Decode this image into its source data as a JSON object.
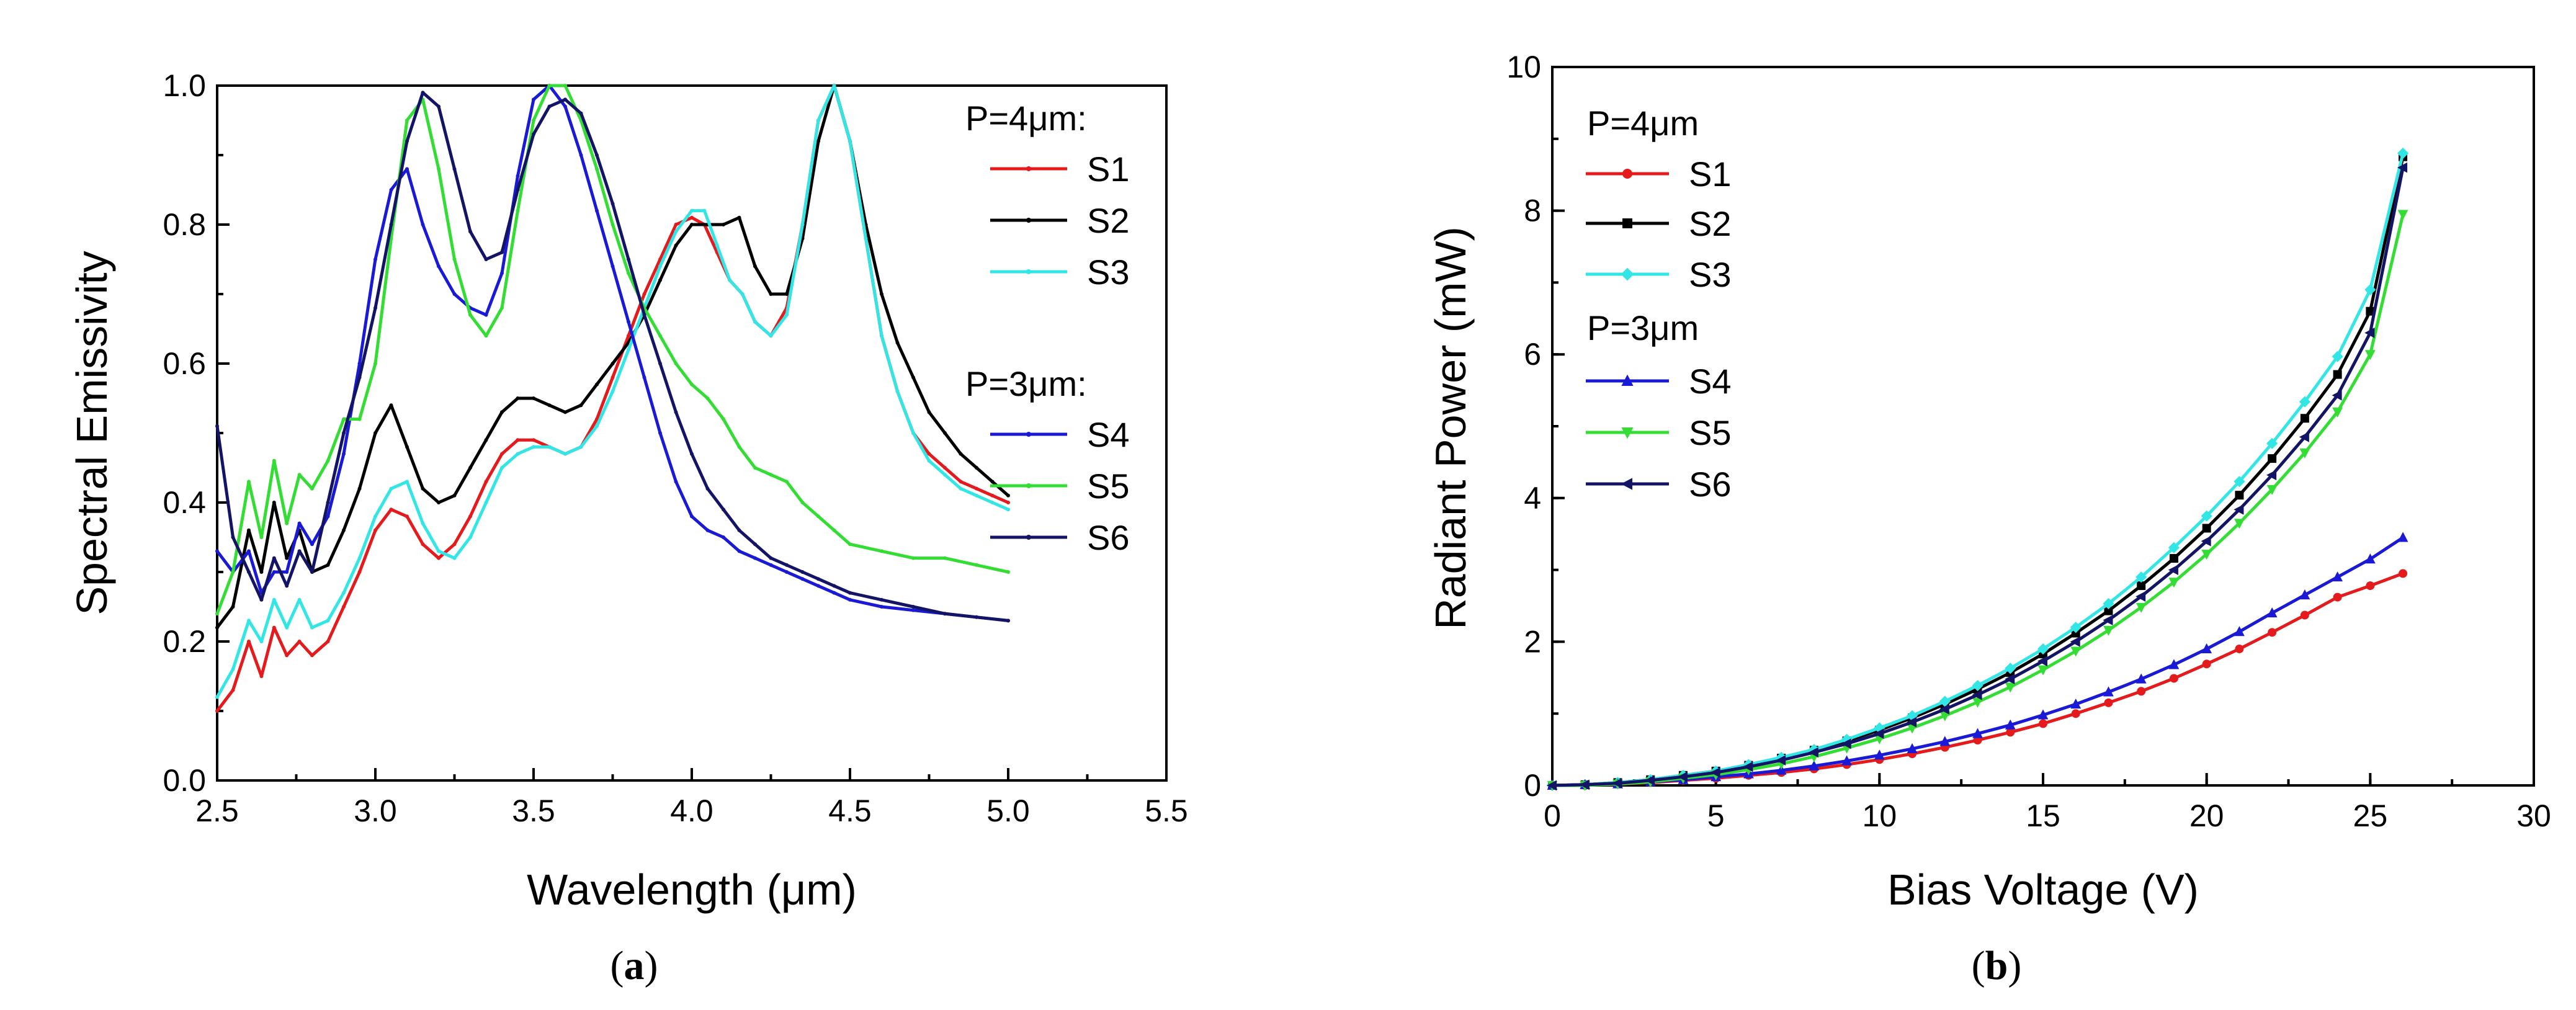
{
  "chart_data": [
    {
      "id": "a",
      "type": "line",
      "panel_label": "a",
      "xlabel": "Wavelength (μm)",
      "ylabel": "Spectral Emissivity",
      "xlim": [
        2.5,
        5.5
      ],
      "ylim": [
        0.0,
        1.0
      ],
      "xticks": [
        2.5,
        3.0,
        3.5,
        4.0,
        4.5,
        5.0,
        5.5
      ],
      "xtick_labels": [
        "2.5",
        "3.0",
        "3.5",
        "4.0",
        "4.5",
        "5.0",
        "5.5"
      ],
      "yticks": [
        0.0,
        0.2,
        0.4,
        0.6,
        0.8,
        1.0
      ],
      "ytick_labels": [
        "0.0",
        "0.2",
        "0.4",
        "0.6",
        "0.8",
        "1.0"
      ],
      "grid": false,
      "legend_position": "top-right",
      "legend_groups": [
        {
          "header": "P=4μm:",
          "series": [
            "S1",
            "S2",
            "S3"
          ]
        },
        {
          "header": "P=3μm:",
          "series": [
            "S4",
            "S5",
            "S6"
          ]
        }
      ],
      "series": [
        {
          "name": "S1",
          "color": "#e41a1c",
          "x": [
            2.5,
            2.55,
            2.6,
            2.64,
            2.68,
            2.72,
            2.76,
            2.8,
            2.85,
            2.9,
            2.95,
            3.0,
            3.05,
            3.1,
            3.15,
            3.2,
            3.25,
            3.3,
            3.35,
            3.4,
            3.45,
            3.5,
            3.55,
            3.6,
            3.65,
            3.7,
            3.75,
            3.8,
            3.85,
            3.9,
            3.95,
            4.0,
            4.04,
            4.08,
            4.12,
            4.16,
            4.2,
            4.25,
            4.3,
            4.35,
            4.4,
            4.45,
            4.5,
            4.55,
            4.6,
            4.65,
            4.7,
            4.75,
            4.8,
            4.85,
            4.9,
            4.95,
            5.0
          ],
          "y": [
            0.1,
            0.13,
            0.2,
            0.15,
            0.22,
            0.18,
            0.2,
            0.18,
            0.2,
            0.25,
            0.3,
            0.36,
            0.39,
            0.38,
            0.34,
            0.32,
            0.34,
            0.38,
            0.43,
            0.47,
            0.49,
            0.49,
            0.48,
            0.47,
            0.48,
            0.52,
            0.58,
            0.64,
            0.7,
            0.75,
            0.8,
            0.81,
            0.8,
            0.76,
            0.72,
            0.7,
            0.66,
            0.64,
            0.68,
            0.8,
            0.95,
            1.0,
            0.92,
            0.78,
            0.64,
            0.56,
            0.5,
            0.47,
            0.45,
            0.43,
            0.42,
            0.41,
            0.4
          ]
        },
        {
          "name": "S2",
          "color": "#000000",
          "x": [
            2.5,
            2.55,
            2.6,
            2.64,
            2.68,
            2.72,
            2.76,
            2.8,
            2.85,
            2.9,
            2.95,
            3.0,
            3.05,
            3.1,
            3.15,
            3.2,
            3.25,
            3.3,
            3.35,
            3.4,
            3.45,
            3.5,
            3.55,
            3.6,
            3.65,
            3.7,
            3.75,
            3.8,
            3.85,
            3.9,
            3.95,
            4.0,
            4.05,
            4.1,
            4.15,
            4.2,
            4.25,
            4.3,
            4.35,
            4.4,
            4.45,
            4.5,
            4.55,
            4.6,
            4.65,
            4.7,
            4.75,
            4.8,
            4.85,
            4.9,
            4.95,
            5.0
          ],
          "y": [
            0.22,
            0.25,
            0.36,
            0.3,
            0.4,
            0.32,
            0.36,
            0.3,
            0.31,
            0.36,
            0.42,
            0.5,
            0.54,
            0.48,
            0.42,
            0.4,
            0.41,
            0.45,
            0.49,
            0.53,
            0.55,
            0.55,
            0.54,
            0.53,
            0.54,
            0.57,
            0.6,
            0.63,
            0.67,
            0.72,
            0.77,
            0.8,
            0.8,
            0.8,
            0.81,
            0.74,
            0.7,
            0.7,
            0.78,
            0.92,
            1.0,
            0.92,
            0.8,
            0.7,
            0.63,
            0.58,
            0.53,
            0.5,
            0.47,
            0.45,
            0.43,
            0.41
          ]
        },
        {
          "name": "S3",
          "color": "#33e6e6",
          "x": [
            2.5,
            2.55,
            2.6,
            2.64,
            2.68,
            2.72,
            2.76,
            2.8,
            2.85,
            2.9,
            2.95,
            3.0,
            3.05,
            3.1,
            3.15,
            3.2,
            3.25,
            3.3,
            3.35,
            3.4,
            3.45,
            3.5,
            3.55,
            3.6,
            3.65,
            3.7,
            3.75,
            3.8,
            3.85,
            3.9,
            3.95,
            4.0,
            4.04,
            4.08,
            4.12,
            4.16,
            4.2,
            4.25,
            4.3,
            4.35,
            4.4,
            4.45,
            4.5,
            4.55,
            4.6,
            4.65,
            4.7,
            4.75,
            4.8,
            4.85,
            4.9,
            4.95,
            5.0
          ],
          "y": [
            0.12,
            0.16,
            0.23,
            0.2,
            0.26,
            0.22,
            0.26,
            0.22,
            0.23,
            0.27,
            0.32,
            0.38,
            0.42,
            0.43,
            0.37,
            0.33,
            0.32,
            0.35,
            0.4,
            0.45,
            0.47,
            0.48,
            0.48,
            0.47,
            0.48,
            0.51,
            0.56,
            0.62,
            0.68,
            0.74,
            0.79,
            0.82,
            0.82,
            0.77,
            0.72,
            0.7,
            0.66,
            0.64,
            0.67,
            0.8,
            0.95,
            1.0,
            0.92,
            0.78,
            0.64,
            0.56,
            0.5,
            0.46,
            0.44,
            0.42,
            0.41,
            0.4,
            0.39
          ]
        },
        {
          "name": "S4",
          "color": "#1a1ad6",
          "x": [
            2.5,
            2.55,
            2.6,
            2.64,
            2.68,
            2.72,
            2.76,
            2.8,
            2.85,
            2.9,
            2.95,
            3.0,
            3.05,
            3.1,
            3.15,
            3.2,
            3.25,
            3.3,
            3.35,
            3.4,
            3.45,
            3.5,
            3.55,
            3.6,
            3.65,
            3.7,
            3.75,
            3.8,
            3.85,
            3.9,
            3.95,
            4.0,
            4.05,
            4.1,
            4.15,
            4.2,
            4.25,
            4.3,
            4.35,
            4.4,
            4.45,
            4.5,
            4.6,
            4.7,
            4.8,
            4.9,
            5.0
          ],
          "y": [
            0.33,
            0.3,
            0.33,
            0.27,
            0.3,
            0.3,
            0.37,
            0.34,
            0.38,
            0.47,
            0.6,
            0.75,
            0.85,
            0.88,
            0.8,
            0.74,
            0.7,
            0.68,
            0.67,
            0.73,
            0.87,
            0.98,
            1.0,
            0.97,
            0.9,
            0.82,
            0.74,
            0.66,
            0.58,
            0.5,
            0.43,
            0.38,
            0.36,
            0.35,
            0.33,
            0.32,
            0.31,
            0.3,
            0.29,
            0.28,
            0.27,
            0.26,
            0.25,
            0.245,
            0.24,
            0.235,
            0.23
          ]
        },
        {
          "name": "S5",
          "color": "#33dd33",
          "x": [
            2.5,
            2.55,
            2.6,
            2.64,
            2.68,
            2.72,
            2.76,
            2.8,
            2.85,
            2.9,
            2.95,
            3.0,
            3.05,
            3.1,
            3.15,
            3.2,
            3.25,
            3.3,
            3.35,
            3.4,
            3.45,
            3.5,
            3.55,
            3.6,
            3.65,
            3.7,
            3.75,
            3.8,
            3.85,
            3.9,
            3.95,
            4.0,
            4.05,
            4.1,
            4.15,
            4.2,
            4.25,
            4.3,
            4.35,
            4.4,
            4.45,
            4.5,
            4.6,
            4.7,
            4.8,
            4.9,
            5.0
          ],
          "y": [
            0.24,
            0.3,
            0.43,
            0.35,
            0.46,
            0.37,
            0.44,
            0.42,
            0.46,
            0.52,
            0.52,
            0.6,
            0.78,
            0.95,
            0.98,
            0.88,
            0.75,
            0.67,
            0.64,
            0.68,
            0.82,
            0.95,
            1.0,
            1.0,
            0.95,
            0.88,
            0.8,
            0.73,
            0.68,
            0.64,
            0.6,
            0.57,
            0.55,
            0.52,
            0.48,
            0.45,
            0.44,
            0.43,
            0.4,
            0.38,
            0.36,
            0.34,
            0.33,
            0.32,
            0.32,
            0.31,
            0.3
          ]
        },
        {
          "name": "S6",
          "color": "#141466",
          "x": [
            2.5,
            2.55,
            2.6,
            2.64,
            2.68,
            2.72,
            2.76,
            2.8,
            2.85,
            2.9,
            2.95,
            3.0,
            3.05,
            3.1,
            3.15,
            3.2,
            3.25,
            3.3,
            3.35,
            3.4,
            3.45,
            3.5,
            3.55,
            3.6,
            3.65,
            3.7,
            3.75,
            3.8,
            3.85,
            3.9,
            3.95,
            4.0,
            4.05,
            4.1,
            4.15,
            4.2,
            4.25,
            4.3,
            4.35,
            4.4,
            4.45,
            4.5,
            4.6,
            4.7,
            4.8,
            4.9,
            5.0
          ],
          "y": [
            0.51,
            0.35,
            0.3,
            0.26,
            0.32,
            0.28,
            0.33,
            0.3,
            0.4,
            0.5,
            0.58,
            0.68,
            0.8,
            0.92,
            0.99,
            0.97,
            0.88,
            0.79,
            0.75,
            0.76,
            0.85,
            0.93,
            0.97,
            0.98,
            0.96,
            0.9,
            0.83,
            0.75,
            0.67,
            0.6,
            0.53,
            0.47,
            0.42,
            0.39,
            0.36,
            0.34,
            0.32,
            0.31,
            0.3,
            0.29,
            0.28,
            0.27,
            0.26,
            0.25,
            0.24,
            0.235,
            0.23
          ]
        }
      ]
    },
    {
      "id": "b",
      "type": "line",
      "panel_label": "b",
      "xlabel": "Bias Voltage (V)",
      "ylabel": "Radiant Power (mW)",
      "xlim": [
        0,
        30
      ],
      "ylim": [
        0,
        10
      ],
      "xticks": [
        0,
        5,
        10,
        15,
        20,
        25,
        30
      ],
      "xtick_labels": [
        "0",
        "5",
        "10",
        "15",
        "20",
        "25",
        "30"
      ],
      "yticks": [
        0,
        2,
        4,
        6,
        8,
        10
      ],
      "ytick_labels": [
        "0",
        "2",
        "4",
        "6",
        "8",
        "10"
      ],
      "grid": false,
      "legend_position": "top-left",
      "legend_groups": [
        {
          "header": "P=4μm",
          "series": [
            "S1",
            "S2",
            "S3"
          ]
        },
        {
          "header": "P=3μm",
          "series": [
            "S4",
            "S5",
            "S6"
          ]
        }
      ],
      "series": [
        {
          "name": "S1",
          "color": "#e41a1c",
          "marker": "circle",
          "x": [
            0,
            1,
            2,
            3,
            4,
            5,
            6,
            7,
            8,
            9,
            10,
            11,
            12,
            13,
            14,
            15,
            16,
            17,
            18,
            19,
            20,
            21,
            22,
            23,
            24,
            25,
            26
          ],
          "y": [
            0,
            0.0,
            0.02,
            0.04,
            0.07,
            0.1,
            0.14,
            0.18,
            0.23,
            0.29,
            0.36,
            0.44,
            0.53,
            0.63,
            0.74,
            0.86,
            1.0,
            1.15,
            1.31,
            1.49,
            1.69,
            1.9,
            2.13,
            2.37,
            2.62,
            2.78,
            2.95
          ]
        },
        {
          "name": "S2",
          "color": "#000000",
          "marker": "square",
          "x": [
            0,
            1,
            2,
            3,
            4,
            5,
            6,
            7,
            8,
            9,
            10,
            11,
            12,
            13,
            14,
            15,
            16,
            17,
            18,
            19,
            20,
            21,
            22,
            23,
            24,
            25,
            26
          ],
          "y": [
            0,
            0.01,
            0.04,
            0.08,
            0.14,
            0.2,
            0.28,
            0.38,
            0.49,
            0.62,
            0.77,
            0.94,
            1.13,
            1.34,
            1.57,
            1.83,
            2.12,
            2.43,
            2.78,
            3.16,
            3.58,
            4.04,
            4.55,
            5.11,
            5.72,
            6.6,
            8.75
          ]
        },
        {
          "name": "S3",
          "color": "#33e6e6",
          "marker": "diamond",
          "x": [
            0,
            1,
            2,
            3,
            4,
            5,
            6,
            7,
            8,
            9,
            10,
            11,
            12,
            13,
            14,
            15,
            16,
            17,
            18,
            19,
            20,
            21,
            22,
            23,
            24,
            25,
            26
          ],
          "y": [
            0,
            0.01,
            0.04,
            0.08,
            0.14,
            0.2,
            0.29,
            0.39,
            0.5,
            0.64,
            0.8,
            0.97,
            1.17,
            1.39,
            1.63,
            1.9,
            2.2,
            2.53,
            2.9,
            3.31,
            3.75,
            4.23,
            4.76,
            5.34,
            5.97,
            6.9,
            8.8
          ]
        },
        {
          "name": "S4",
          "color": "#1a1ad6",
          "marker": "triangle-up",
          "x": [
            0,
            1,
            2,
            3,
            4,
            5,
            6,
            7,
            8,
            9,
            10,
            11,
            12,
            13,
            14,
            15,
            16,
            17,
            18,
            19,
            20,
            21,
            22,
            23,
            24,
            25,
            26
          ],
          "y": [
            0,
            0.01,
            0.02,
            0.05,
            0.08,
            0.12,
            0.16,
            0.21,
            0.27,
            0.34,
            0.42,
            0.51,
            0.61,
            0.72,
            0.84,
            0.98,
            1.13,
            1.3,
            1.48,
            1.68,
            1.9,
            2.14,
            2.4,
            2.65,
            2.9,
            3.15,
            3.45
          ]
        },
        {
          "name": "S5",
          "color": "#33dd33",
          "marker": "triangle-down",
          "x": [
            0,
            1,
            2,
            3,
            4,
            5,
            6,
            7,
            8,
            9,
            10,
            11,
            12,
            13,
            14,
            15,
            16,
            17,
            18,
            19,
            20,
            21,
            22,
            23,
            24,
            25,
            26
          ],
          "y": [
            0,
            0.0,
            0.02,
            0.05,
            0.1,
            0.15,
            0.22,
            0.3,
            0.4,
            0.52,
            0.65,
            0.8,
            0.97,
            1.16,
            1.37,
            1.61,
            1.87,
            2.16,
            2.48,
            2.83,
            3.22,
            3.65,
            4.12,
            4.63,
            5.2,
            6.0,
            7.95
          ]
        },
        {
          "name": "S6",
          "color": "#141466",
          "marker": "triangle-left",
          "x": [
            0,
            1,
            2,
            3,
            4,
            5,
            6,
            7,
            8,
            9,
            10,
            11,
            12,
            13,
            14,
            15,
            16,
            17,
            18,
            19,
            20,
            21,
            22,
            23,
            24,
            25,
            26
          ],
          "y": [
            0,
            0.01,
            0.03,
            0.07,
            0.12,
            0.18,
            0.26,
            0.35,
            0.46,
            0.58,
            0.72,
            0.88,
            1.06,
            1.26,
            1.48,
            1.73,
            2.0,
            2.3,
            2.63,
            3.0,
            3.4,
            3.84,
            4.32,
            4.85,
            5.43,
            6.3,
            8.6
          ]
        }
      ]
    }
  ]
}
